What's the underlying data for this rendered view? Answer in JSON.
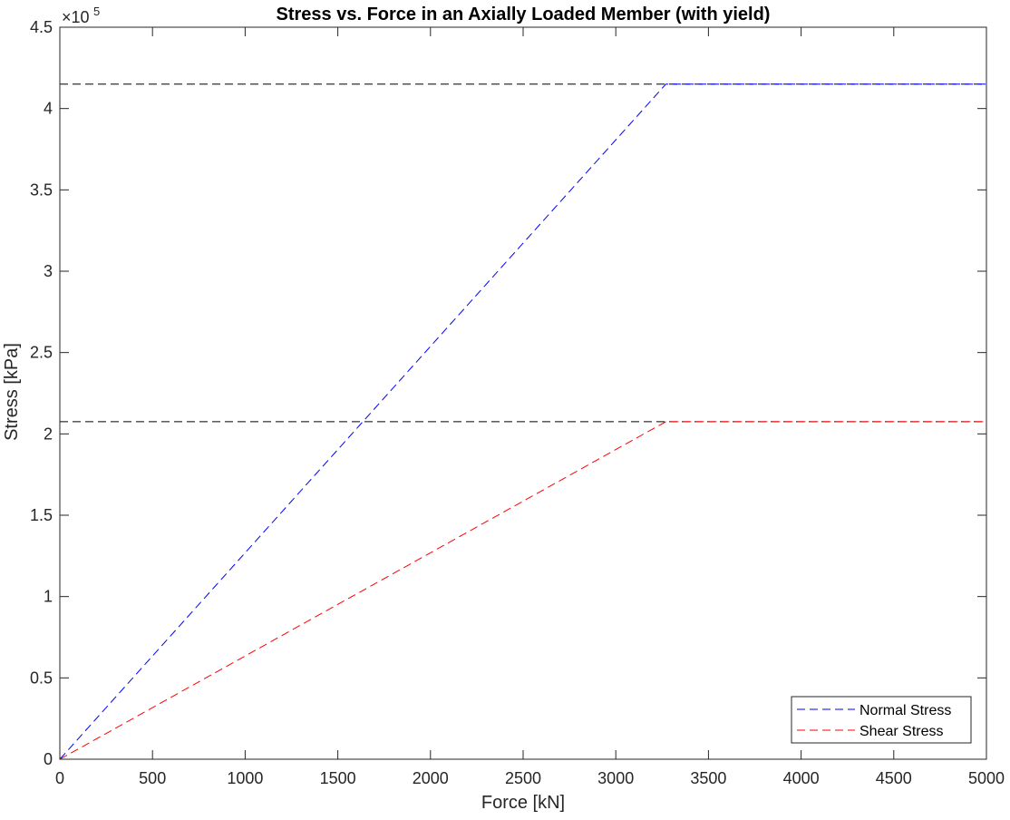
{
  "chart_data": {
    "type": "line",
    "title": "Stress vs. Force in an Axially Loaded Member (with yield)",
    "xlabel": "Force [kN]",
    "ylabel": "Stress [kPa]",
    "y_exponent_label": "×10",
    "y_exponent_power": "5",
    "xlim": [
      0,
      5000
    ],
    "ylim": [
      0,
      450000
    ],
    "x_ticks": [
      0,
      500,
      1000,
      1500,
      2000,
      2500,
      3000,
      3500,
      4000,
      4500,
      5000
    ],
    "x_tick_labels": [
      "0",
      "500",
      "1000",
      "1500",
      "2000",
      "2500",
      "3000",
      "3500",
      "4000",
      "4500",
      "5000"
    ],
    "y_ticks": [
      0,
      50000,
      100000,
      150000,
      200000,
      250000,
      300000,
      350000,
      400000,
      450000
    ],
    "y_tick_labels": [
      "0",
      "0.5",
      "1",
      "1.5",
      "2",
      "2.5",
      "3",
      "3.5",
      "4",
      "4.5"
    ],
    "grid": false,
    "legend_position": "bottom-right",
    "series": [
      {
        "name": "Normal Stress",
        "color": "#0000ff",
        "linestyle": "dashed",
        "x": [
          0,
          3270,
          5000
        ],
        "y": [
          0,
          415000,
          415000
        ]
      },
      {
        "name": "Shear Stress",
        "color": "#ff0000",
        "linestyle": "dashed",
        "x": [
          0,
          3270,
          5000
        ],
        "y": [
          0,
          207500,
          207500
        ]
      }
    ],
    "reference_lines": [
      {
        "orientation": "horizontal",
        "y": 415000,
        "color": "#000000",
        "linestyle": "dashed"
      },
      {
        "orientation": "horizontal",
        "y": 207500,
        "color": "#000000",
        "linestyle": "dashed"
      }
    ]
  }
}
